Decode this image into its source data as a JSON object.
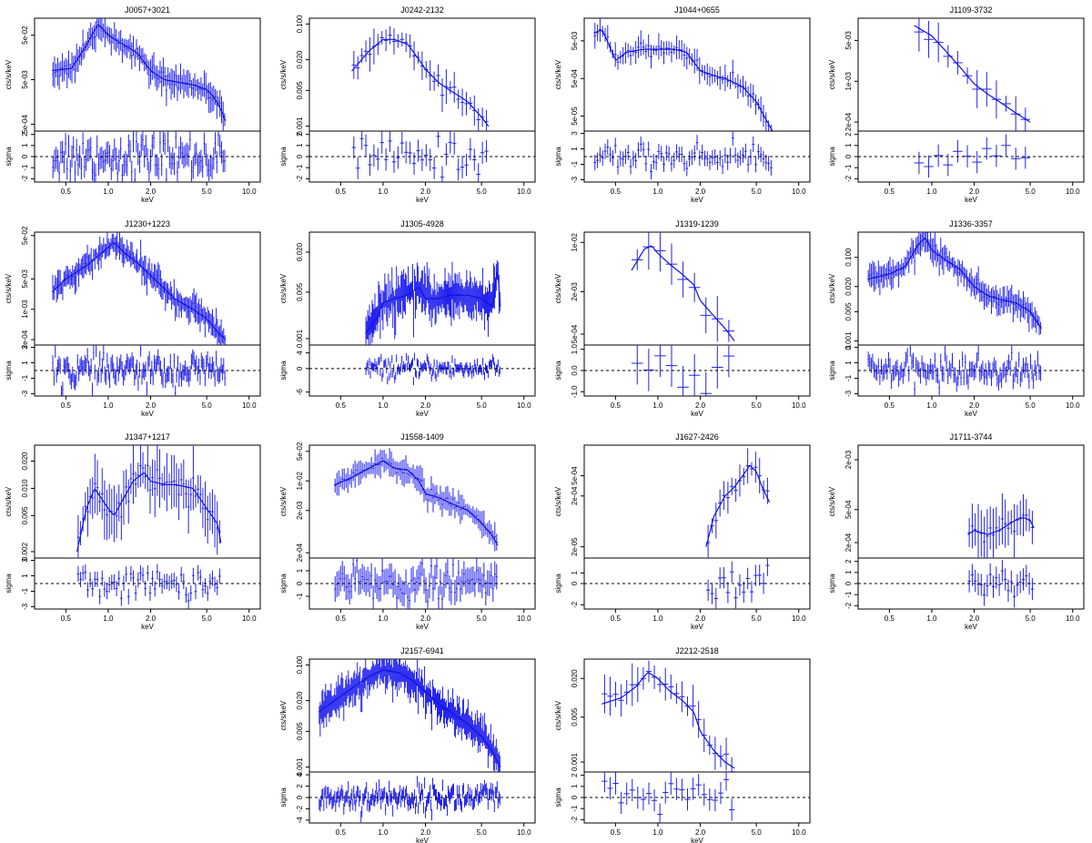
{
  "figure": {
    "panel_ylabel_top": "cts/s/keV",
    "panel_ylabel_bottom": "sigma",
    "panel_xlabel": "keV",
    "x_ticks": [
      "0.5",
      "1.0",
      "2.0",
      "5.0",
      "10.0"
    ],
    "colors": {
      "data": "#2222ee",
      "model": "#1010e0",
      "axes": "#000000"
    }
  },
  "chart_data": [
    {
      "type": "line",
      "title": "J0057+3021",
      "xlog": true,
      "ylog": true,
      "xlim": [
        0.3,
        12
      ],
      "y_ticks": [
        "5e-02",
        "5e-03",
        "5e-04"
      ],
      "y_tick_values": [
        0.05,
        0.005,
        0.0005
      ],
      "ylim": [
        0.00035,
        0.12
      ],
      "model": {
        "x": [
          0.4,
          0.55,
          0.7,
          0.85,
          1.0,
          1.3,
          1.6,
          2.0,
          2.5,
          3.0,
          4.0,
          5.0,
          5.5,
          6.2,
          6.8
        ],
        "y": [
          0.008,
          0.009,
          0.03,
          0.09,
          0.05,
          0.03,
          0.02,
          0.008,
          0.005,
          0.0045,
          0.0038,
          0.003,
          0.0022,
          0.0012,
          0.0006
        ]
      },
      "points_per_keV_range": [
        0.4,
        6.8
      ],
      "n_points": 110,
      "residuals": {
        "y_ticks": [
          "2",
          "1",
          "0",
          "-1",
          "-2"
        ],
        "y_tick_values": [
          2,
          1,
          0,
          -1,
          -2
        ],
        "ylim": [
          -2.3,
          2.3
        ],
        "scatter": 1.1
      }
    },
    {
      "type": "line",
      "title": "J0242-2132",
      "xlog": true,
      "ylog": true,
      "xlim": [
        0.3,
        12
      ],
      "y_ticks": [
        "0.100",
        "0.020",
        "0.005",
        "0.001"
      ],
      "y_tick_values": [
        0.1,
        0.02,
        0.005,
        0.001
      ],
      "ylim": [
        0.0008,
        0.13
      ],
      "model": {
        "x": [
          0.6,
          0.8,
          1.0,
          1.2,
          1.5,
          1.8,
          2.0,
          2.5,
          3.0,
          4.0,
          5.0,
          5.6
        ],
        "y": [
          0.012,
          0.03,
          0.05,
          0.05,
          0.04,
          0.02,
          0.013,
          0.007,
          0.005,
          0.003,
          0.0015,
          0.001
        ]
      },
      "points_per_keV_range": [
        0.6,
        5.6
      ],
      "n_points": 34,
      "residuals": {
        "y_ticks": [
          "2",
          "1",
          "0",
          "-1",
          "-2"
        ],
        "y_tick_values": [
          2,
          1,
          0,
          -1,
          -2
        ],
        "ylim": [
          -2.3,
          2.3
        ],
        "scatter": 1.0
      }
    },
    {
      "type": "line",
      "title": "J1044+0655",
      "xlog": true,
      "ylog": true,
      "xlim": [
        0.3,
        12
      ],
      "y_ticks": [
        "5e-03",
        "5e-04",
        "5e-05"
      ],
      "y_tick_values": [
        0.005,
        0.0005,
        5e-05
      ],
      "ylim": [
        2e-05,
        0.02
      ],
      "model": {
        "x": [
          0.35,
          0.4,
          0.45,
          0.5,
          0.6,
          0.8,
          1.0,
          1.3,
          1.6,
          2.0,
          2.5,
          3.0,
          4.0,
          5.0,
          6.5
        ],
        "y": [
          0.008,
          0.01,
          0.004,
          0.0015,
          0.0025,
          0.003,
          0.003,
          0.003,
          0.0025,
          0.0008,
          0.0006,
          0.0005,
          0.0003,
          0.00012,
          2e-05
        ]
      },
      "points_per_keV_range": [
        0.35,
        6.5
      ],
      "n_points": 70,
      "residuals": {
        "y_ticks": [
          "3",
          "1",
          "-1",
          "-3"
        ],
        "y_tick_values": [
          3,
          1,
          -1,
          -3
        ],
        "ylim": [
          -3.3,
          3.3
        ],
        "scatter": 1.0
      }
    },
    {
      "type": "line",
      "title": "J1109-3732",
      "xlog": true,
      "ylog": true,
      "xlim": [
        0.3,
        12
      ],
      "y_ticks": [
        "5e-03",
        "1e-03",
        "2e-04"
      ],
      "y_tick_values": [
        0.005,
        0.001,
        0.0002
      ],
      "ylim": [
        0.00014,
        0.012
      ],
      "model": {
        "x": [
          0.75,
          1.0,
          1.3,
          1.6,
          2.0,
          2.5,
          3.0,
          4.0,
          5.0
        ],
        "y": [
          0.009,
          0.006,
          0.003,
          0.0017,
          0.0009,
          0.0006,
          0.00045,
          0.00028,
          0.0002
        ]
      },
      "points_per_keV_range": [
        0.75,
        5.0
      ],
      "n_points": 12,
      "residuals": {
        "y_ticks": [
          "2",
          "1",
          "0",
          "-1",
          "-2"
        ],
        "y_tick_values": [
          2,
          1,
          0,
          -1,
          -2
        ],
        "ylim": [
          -2.3,
          2.3
        ],
        "scatter": 0.8
      }
    },
    {
      "type": "line",
      "title": "J1230+1223",
      "xlog": true,
      "ylog": true,
      "xlim": [
        0.3,
        12
      ],
      "y_ticks": [
        "5e-02",
        "5e-03",
        "1e-03",
        "2e-04"
      ],
      "y_tick_values": [
        0.05,
        0.005,
        0.001,
        0.0002
      ],
      "ylim": [
        0.00015,
        0.06
      ],
      "model": {
        "x": [
          0.4,
          0.5,
          0.7,
          0.9,
          1.1,
          1.3,
          1.6,
          2.0,
          2.5,
          3.0,
          4.0,
          5.0,
          6.0,
          6.8
        ],
        "y": [
          0.0025,
          0.005,
          0.01,
          0.02,
          0.035,
          0.02,
          0.012,
          0.006,
          0.003,
          0.0017,
          0.001,
          0.0006,
          0.0003,
          0.0002
        ]
      },
      "points_per_keV_range": [
        0.4,
        6.8
      ],
      "n_points": 140,
      "residuals": {
        "y_ticks": [
          "3",
          "1",
          "-1",
          "-3"
        ],
        "y_tick_values": [
          3,
          1,
          -1,
          -3
        ],
        "ylim": [
          -3.3,
          3.3
        ],
        "scatter": 1.2
      }
    },
    {
      "type": "line",
      "title": "J1305-4928",
      "xlog": true,
      "ylog": true,
      "xlim": [
        0.3,
        12
      ],
      "y_ticks": [
        "0.020",
        "0.005",
        "0.001"
      ],
      "y_tick_values": [
        0.02,
        0.005,
        0.001
      ],
      "ylim": [
        0.0008,
        0.04
      ],
      "model": {
        "x": [
          0.75,
          0.9,
          1.0,
          1.2,
          1.5,
          1.8,
          2.0,
          2.5,
          3.0,
          4.0,
          5.0,
          6.0,
          6.5,
          6.8
        ],
        "y": [
          0.0012,
          0.002,
          0.0035,
          0.004,
          0.0045,
          0.006,
          0.004,
          0.004,
          0.0045,
          0.0045,
          0.004,
          0.003,
          0.012,
          0.003
        ]
      },
      "points_per_keV_range": [
        0.75,
        6.8
      ],
      "n_points": 150,
      "residuals": {
        "y_ticks": [
          "4",
          "0",
          "-6"
        ],
        "y_tick_values": [
          4,
          0,
          -6
        ],
        "ylim": [
          -7,
          6
        ],
        "scatter": 1.5
      }
    },
    {
      "type": "line",
      "title": "J1319-1239",
      "xlog": true,
      "ylog": true,
      "xlim": [
        0.3,
        12
      ],
      "y_ticks": [
        "1e-02",
        "2e-03",
        "5e-04"
      ],
      "y_tick_values": [
        0.01,
        0.002,
        0.0005
      ],
      "ylim": [
        0.00035,
        0.014
      ],
      "model": {
        "x": [
          0.65,
          0.8,
          0.9,
          1.0,
          1.2,
          1.5,
          1.8,
          2.0,
          2.5,
          3.0,
          3.5
        ],
        "y": [
          0.004,
          0.008,
          0.009,
          0.007,
          0.005,
          0.0035,
          0.0025,
          0.0015,
          0.0009,
          0.0006,
          0.0004
        ]
      },
      "points_per_keV_range": [
        0.65,
        3.5
      ],
      "n_points": 9,
      "residuals": {
        "y_ticks": [
          "1.0",
          "0.0",
          "-1.0"
        ],
        "y_tick_values": [
          1,
          0,
          -1
        ],
        "ylim": [
          -1.2,
          1.2
        ],
        "scatter": 0.6
      }
    },
    {
      "type": "line",
      "title": "J1336-3357",
      "xlog": true,
      "ylog": true,
      "xlim": [
        0.3,
        12
      ],
      "y_ticks": [
        "0.100",
        "0.020",
        "0.005",
        "0.001"
      ],
      "y_tick_values": [
        0.1,
        0.02,
        0.005,
        0.001
      ],
      "ylim": [
        0.0008,
        0.4
      ],
      "model": {
        "x": [
          0.35,
          0.5,
          0.65,
          0.8,
          0.9,
          1.0,
          1.3,
          1.6,
          2.0,
          2.5,
          3.0,
          4.0,
          5.0,
          6.0
        ],
        "y": [
          0.03,
          0.04,
          0.06,
          0.2,
          0.3,
          0.15,
          0.08,
          0.05,
          0.02,
          0.012,
          0.01,
          0.008,
          0.005,
          0.002
        ]
      },
      "points_per_keV_range": [
        0.35,
        6.0
      ],
      "n_points": 120,
      "residuals": {
        "y_ticks": [
          "3",
          "1",
          "-1",
          "-3"
        ],
        "y_tick_values": [
          3,
          1,
          -1,
          -3
        ],
        "ylim": [
          -3.3,
          3.3
        ],
        "scatter": 1.1
      }
    },
    {
      "type": "line",
      "title": "J1347+1217",
      "xlog": true,
      "ylog": true,
      "xlim": [
        0.3,
        12
      ],
      "y_ticks": [
        "0.020",
        "0.010",
        "0.005",
        "0.002"
      ],
      "y_tick_values": [
        0.02,
        0.01,
        0.005,
        0.002
      ],
      "ylim": [
        0.0017,
        0.03
      ],
      "model": {
        "x": [
          0.6,
          0.7,
          0.8,
          1.0,
          1.1,
          1.3,
          1.5,
          1.8,
          2.0,
          2.5,
          3.0,
          4.0,
          5.0,
          6.0,
          6.3
        ],
        "y": [
          0.002,
          0.006,
          0.01,
          0.006,
          0.005,
          0.008,
          0.012,
          0.015,
          0.012,
          0.011,
          0.011,
          0.01,
          0.006,
          0.004,
          0.0025
        ]
      },
      "points_per_keV_range": [
        0.6,
        6.3
      ],
      "n_points": 60,
      "residuals": {
        "y_ticks": [
          "3",
          "1",
          "-1",
          "-3"
        ],
        "y_tick_values": [
          3,
          1,
          -1,
          -3
        ],
        "ylim": [
          -3.3,
          3.3
        ],
        "scatter": 1.1
      }
    },
    {
      "type": "line",
      "title": "J1558-1409",
      "xlog": true,
      "ylog": true,
      "xlim": [
        0.3,
        12
      ],
      "y_ticks": [
        "5e-02",
        "1e-02",
        "2e-03",
        "2e-04"
      ],
      "y_tick_values": [
        0.05,
        0.01,
        0.002,
        0.0002
      ],
      "ylim": [
        0.00015,
        0.07
      ],
      "model": {
        "x": [
          0.45,
          0.6,
          0.8,
          1.0,
          1.2,
          1.5,
          1.8,
          2.0,
          2.5,
          3.0,
          4.0,
          5.0,
          6.0,
          6.5
        ],
        "y": [
          0.008,
          0.012,
          0.02,
          0.03,
          0.02,
          0.018,
          0.01,
          0.005,
          0.004,
          0.003,
          0.002,
          0.001,
          0.0005,
          0.0003
        ]
      },
      "points_per_keV_range": [
        0.45,
        6.5
      ],
      "n_points": 90,
      "residuals": {
        "y_ticks": [
          "1",
          "0",
          "-1"
        ],
        "y_tick_values": [
          1,
          0,
          -1
        ],
        "ylim": [
          -2,
          2
        ],
        "scatter": 0.8
      }
    },
    {
      "type": "line",
      "title": "J1627-2426",
      "xlog": true,
      "ylog": true,
      "xlim": [
        0.3,
        12
      ],
      "y_ticks": [
        "5e-04",
        "2e-04",
        "2e-05"
      ],
      "y_tick_values": [
        0.0005,
        0.0002,
        2e-05
      ],
      "ylim": [
        1.2e-05,
        0.002
      ],
      "model": {
        "x": [
          2.2,
          2.5,
          3.0,
          3.5,
          4.0,
          4.5,
          5.0,
          5.5,
          6.2
        ],
        "y": [
          2e-05,
          8e-05,
          0.0002,
          0.0003,
          0.0005,
          0.0008,
          0.0006,
          0.0003,
          0.00015
        ]
      },
      "points_per_keV_range": [
        2.2,
        6.2
      ],
      "n_points": 16,
      "residuals": {
        "y_ticks": [
          "1",
          "0",
          "-2"
        ],
        "y_tick_values": [
          1,
          0,
          -2
        ],
        "ylim": [
          -2.4,
          2.4
        ],
        "scatter": 0.8
      }
    },
    {
      "type": "line",
      "title": "J1711-3744",
      "xlog": true,
      "ylog": true,
      "xlim": [
        0.3,
        12
      ],
      "y_ticks": [
        "2e-03",
        "5e-04",
        "2e-04"
      ],
      "y_tick_values": [
        0.002,
        0.0005,
        0.0002
      ],
      "ylim": [
        0.00013,
        0.003
      ],
      "model": {
        "x": [
          1.8,
          2.0,
          2.5,
          3.0,
          3.5,
          4.0,
          4.5,
          5.0,
          5.3
        ],
        "y": [
          0.00025,
          0.00028,
          0.00025,
          0.00028,
          0.00033,
          0.00038,
          0.0004,
          0.00037,
          0.0003
        ]
      },
      "points_per_keV_range": [
        1.8,
        5.3
      ],
      "n_points": 22,
      "residuals": {
        "y_ticks": [
          "2",
          "1",
          "0",
          "-1",
          "-2"
        ],
        "y_tick_values": [
          2,
          1,
          0,
          -1,
          -2
        ],
        "ylim": [
          -2.3,
          2.3
        ],
        "scatter": 0.8
      }
    },
    {
      "type": "line",
      "title": "J2157-6941",
      "xlog": true,
      "ylog": true,
      "xlim": [
        0.3,
        12
      ],
      "y_ticks": [
        "0.100",
        "0.020",
        "0.005",
        "0.001"
      ],
      "y_tick_values": [
        0.1,
        0.02,
        0.005,
        0.001
      ],
      "ylim": [
        0.0008,
        0.13
      ],
      "model": {
        "x": [
          0.35,
          0.45,
          0.6,
          0.8,
          1.0,
          1.3,
          1.6,
          2.0,
          2.5,
          3.0,
          4.0,
          5.0,
          6.0,
          6.8
        ],
        "y": [
          0.012,
          0.02,
          0.035,
          0.06,
          0.08,
          0.07,
          0.05,
          0.03,
          0.017,
          0.012,
          0.007,
          0.004,
          0.002,
          0.001
        ]
      },
      "points_per_keV_range": [
        0.35,
        6.8
      ],
      "n_points": 200,
      "residuals": {
        "y_ticks": [
          "4",
          "2",
          "0",
          "-2",
          "-4"
        ],
        "y_tick_values": [
          4,
          2,
          0,
          -2,
          -4
        ],
        "ylim": [
          -4.5,
          4.5
        ],
        "scatter": 1.4
      }
    },
    {
      "type": "line",
      "title": "J2212-2518",
      "xlog": true,
      "ylog": true,
      "xlim": [
        0.3,
        12
      ],
      "y_ticks": [
        "0.020",
        "0.005",
        "0.001"
      ],
      "y_tick_values": [
        0.02,
        0.005,
        0.001
      ],
      "ylim": [
        0.0007,
        0.04
      ],
      "model": {
        "x": [
          0.4,
          0.55,
          0.7,
          0.85,
          1.0,
          1.2,
          1.5,
          1.8,
          2.0,
          2.5,
          3.0,
          3.5
        ],
        "y": [
          0.008,
          0.01,
          0.015,
          0.025,
          0.02,
          0.013,
          0.009,
          0.006,
          0.003,
          0.0015,
          0.001,
          0.0008
        ]
      },
      "points_per_keV_range": [
        0.4,
        3.5
      ],
      "n_points": 24,
      "residuals": {
        "y_ticks": [
          "2",
          "1",
          "0",
          "-1",
          "-2"
        ],
        "y_tick_values": [
          2,
          1,
          0,
          -1,
          -2
        ],
        "ylim": [
          -2.3,
          2.3
        ],
        "scatter": 1.0
      }
    }
  ]
}
